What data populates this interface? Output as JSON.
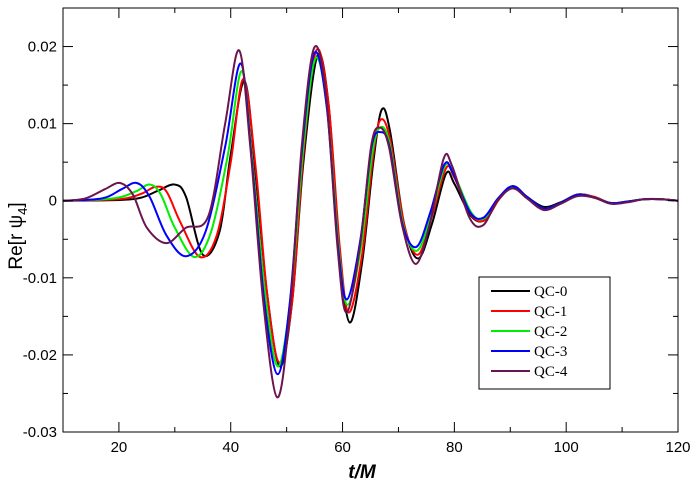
{
  "chart_data": {
    "type": "line",
    "title": "",
    "xlabel": "t/M",
    "ylabel_main": "Re[r ψ",
    "ylabel_sub": "4",
    "ylabel_end": "]",
    "xlim": [
      10,
      120
    ],
    "ylim": [
      -0.03,
      0.025
    ],
    "xticks": [
      20,
      40,
      60,
      80,
      100,
      120
    ],
    "xtick_labels": [
      "20",
      "40",
      "60",
      "80",
      "100",
      "120"
    ],
    "yticks": [
      -0.03,
      -0.02,
      -0.01,
      0,
      0.01,
      0.02
    ],
    "ytick_labels": [
      "-0.03",
      "-0.02",
      "-0.01",
      "0",
      "0.01",
      "0.02"
    ],
    "grid": false,
    "legend_position": "bottom-right",
    "series": [
      {
        "name": "QC-0",
        "color": "#000000",
        "points": [
          [
            10,
            0
          ],
          [
            20,
            0.0001
          ],
          [
            24,
            0.0004
          ],
          [
            27,
            0.0013
          ],
          [
            30,
            0.0021
          ],
          [
            32,
            0.0005
          ],
          [
            35,
            -0.007
          ],
          [
            38,
            -0.004
          ],
          [
            40,
            0.006
          ],
          [
            42.5,
            0.0155
          ],
          [
            44.5,
            0.003
          ],
          [
            46.5,
            -0.012
          ],
          [
            48.8,
            -0.0215
          ],
          [
            51,
            -0.013
          ],
          [
            53,
            0.005
          ],
          [
            55.5,
            0.0188
          ],
          [
            57.5,
            0.0125
          ],
          [
            59.5,
            -0.007
          ],
          [
            61.3,
            -0.0158
          ],
          [
            63.5,
            -0.008
          ],
          [
            65.5,
            0.005
          ],
          [
            67,
            0.0118
          ],
          [
            68.5,
            0.009
          ],
          [
            71,
            -0.003
          ],
          [
            73.5,
            -0.0075
          ],
          [
            76,
            -0.003
          ],
          [
            78.5,
            0.0035
          ],
          [
            80,
            0.0022
          ],
          [
            83,
            -0.002
          ],
          [
            85.5,
            -0.0025
          ],
          [
            88,
            0.0002
          ],
          [
            90.5,
            0.0018
          ],
          [
            93,
            0.0005
          ],
          [
            96,
            -0.0008
          ],
          [
            99,
            -0.0002
          ],
          [
            102,
            0.0008
          ],
          [
            105,
            0.0005
          ],
          [
            108,
            -0.0003
          ],
          [
            111,
            -0.0001
          ],
          [
            114,
            0.0002
          ],
          [
            117,
            0.0002
          ],
          [
            120,
            0
          ]
        ]
      },
      {
        "name": "QC-1",
        "color": "#ff0000",
        "points": [
          [
            10,
            0
          ],
          [
            20,
            0.0002
          ],
          [
            24,
            0.0009
          ],
          [
            26.5,
            0.0018
          ],
          [
            28.5,
            0.0012
          ],
          [
            31,
            -0.0028
          ],
          [
            34.5,
            -0.0073
          ],
          [
            37.5,
            -0.0045
          ],
          [
            40,
            0.005
          ],
          [
            42.3,
            0.0158
          ],
          [
            44.5,
            0.004
          ],
          [
            46.5,
            -0.012
          ],
          [
            48.7,
            -0.021
          ],
          [
            51,
            -0.013
          ],
          [
            53,
            0.006
          ],
          [
            55.3,
            0.0195
          ],
          [
            57.5,
            0.0125
          ],
          [
            59.5,
            -0.006
          ],
          [
            61.1,
            -0.0145
          ],
          [
            63.5,
            -0.007
          ],
          [
            65.5,
            0.006
          ],
          [
            66.8,
            0.0105
          ],
          [
            68.5,
            0.008
          ],
          [
            71,
            -0.003
          ],
          [
            73.5,
            -0.007
          ],
          [
            76,
            -0.002
          ],
          [
            78.5,
            0.0042
          ],
          [
            80,
            0.003
          ],
          [
            83,
            -0.0018
          ],
          [
            85.5,
            -0.0025
          ],
          [
            88,
            0.0002
          ],
          [
            90.5,
            0.0019
          ],
          [
            93,
            0.0005
          ],
          [
            96,
            -0.001
          ],
          [
            99,
            -0.0003
          ],
          [
            102,
            0.0008
          ],
          [
            105,
            0.0005
          ],
          [
            108,
            -0.0003
          ],
          [
            111,
            -0.0001
          ],
          [
            114,
            0.0002
          ],
          [
            117,
            0.0002
          ],
          [
            120,
            0
          ]
        ]
      },
      {
        "name": "QC-2",
        "color": "#00ee00",
        "points": [
          [
            10,
            0
          ],
          [
            19,
            0.0003
          ],
          [
            23,
            0.0012
          ],
          [
            25.5,
            0.0021
          ],
          [
            27.5,
            0.0008
          ],
          [
            30,
            -0.0035
          ],
          [
            33.5,
            -0.0073
          ],
          [
            36.5,
            -0.004
          ],
          [
            39.5,
            0.006
          ],
          [
            42,
            0.0168
          ],
          [
            44,
            0.004
          ],
          [
            46.3,
            -0.013
          ],
          [
            48.5,
            -0.0215
          ],
          [
            50.8,
            -0.012
          ],
          [
            53,
            0.007
          ],
          [
            55.2,
            0.0185
          ],
          [
            57.3,
            0.0115
          ],
          [
            59.3,
            -0.006
          ],
          [
            60.9,
            -0.0135
          ],
          [
            63.3,
            -0.006
          ],
          [
            65.3,
            0.006
          ],
          [
            66.7,
            0.0095
          ],
          [
            68.4,
            0.0075
          ],
          [
            70.8,
            -0.003
          ],
          [
            73.3,
            -0.0065
          ],
          [
            75.8,
            -0.002
          ],
          [
            78.3,
            0.0045
          ],
          [
            80,
            0.0033
          ],
          [
            83,
            -0.0015
          ],
          [
            85.3,
            -0.0023
          ],
          [
            88,
            0.0003
          ],
          [
            90.5,
            0.0019
          ],
          [
            93,
            0.0005
          ],
          [
            96,
            -0.001
          ],
          [
            99,
            -0.0003
          ],
          [
            102,
            0.0008
          ],
          [
            105,
            0.0004
          ],
          [
            108,
            -0.0003
          ],
          [
            111,
            -0.0001
          ],
          [
            114,
            0.0002
          ],
          [
            117,
            0.0002
          ],
          [
            120,
            0
          ]
        ]
      },
      {
        "name": "QC-3",
        "color": "#0000ff",
        "points": [
          [
            10,
            0
          ],
          [
            17,
            0.0003
          ],
          [
            20.5,
            0.0015
          ],
          [
            23.2,
            0.0023
          ],
          [
            25.5,
            0.0005
          ],
          [
            28.5,
            -0.0045
          ],
          [
            32,
            -0.0072
          ],
          [
            35.5,
            -0.004
          ],
          [
            39,
            0.007
          ],
          [
            41.8,
            0.0178
          ],
          [
            43.8,
            0.005
          ],
          [
            46,
            -0.013
          ],
          [
            48.4,
            -0.0225
          ],
          [
            50.6,
            -0.013
          ],
          [
            52.8,
            0.007
          ],
          [
            55,
            0.0192
          ],
          [
            57.2,
            0.012
          ],
          [
            59.2,
            -0.006
          ],
          [
            60.8,
            -0.0128
          ],
          [
            63.2,
            -0.005
          ],
          [
            65.2,
            0.007
          ],
          [
            66.8,
            0.0089
          ],
          [
            68.4,
            0.007
          ],
          [
            70.7,
            -0.003
          ],
          [
            73.2,
            -0.006
          ],
          [
            75.7,
            -0.0015
          ],
          [
            78.2,
            0.0047
          ],
          [
            79.8,
            0.0035
          ],
          [
            82.8,
            -0.0015
          ],
          [
            85.2,
            -0.0022
          ],
          [
            87.8,
            0.0003
          ],
          [
            90.4,
            0.0019
          ],
          [
            93,
            0.0005
          ],
          [
            96,
            -0.001
          ],
          [
            99,
            -0.0003
          ],
          [
            102,
            0.0008
          ],
          [
            105,
            0.0004
          ],
          [
            108,
            -0.0003
          ],
          [
            111,
            -0.0001
          ],
          [
            114,
            0.0002
          ],
          [
            117,
            0.0002
          ],
          [
            120,
            0
          ]
        ]
      },
      {
        "name": "QC-4",
        "color": "#6b1550",
        "points": [
          [
            10,
            0
          ],
          [
            14,
            0.0003
          ],
          [
            17.5,
            0.0015
          ],
          [
            20.2,
            0.0023
          ],
          [
            22.5,
            0.0008
          ],
          [
            25,
            -0.0035
          ],
          [
            28.5,
            -0.0055
          ],
          [
            32,
            -0.0035
          ],
          [
            36,
            -0.002
          ],
          [
            39,
            0.01
          ],
          [
            41.5,
            0.0195
          ],
          [
            43.5,
            0.007
          ],
          [
            45.8,
            -0.013
          ],
          [
            48.3,
            -0.0255
          ],
          [
            50.5,
            -0.015
          ],
          [
            52.7,
            0.007
          ],
          [
            54.9,
            0.0198
          ],
          [
            57,
            0.014
          ],
          [
            59.1,
            -0.006
          ],
          [
            60.7,
            -0.0145
          ],
          [
            63.1,
            -0.006
          ],
          [
            65.1,
            0.007
          ],
          [
            66.6,
            0.0095
          ],
          [
            68.3,
            0.007
          ],
          [
            70.6,
            -0.003
          ],
          [
            73.1,
            -0.0082
          ],
          [
            75.6,
            -0.003
          ],
          [
            78.1,
            0.0055
          ],
          [
            79.6,
            0.0045
          ],
          [
            82.7,
            -0.0022
          ],
          [
            85.1,
            -0.0032
          ],
          [
            87.7,
            0
          ],
          [
            90.4,
            0.0016
          ],
          [
            93,
            0.0003
          ],
          [
            96,
            -0.0012
          ],
          [
            99,
            -0.0004
          ],
          [
            102,
            0.0006
          ],
          [
            105,
            0.0004
          ],
          [
            108,
            -0.0004
          ],
          [
            111,
            -0.0002
          ],
          [
            114,
            0.0002
          ],
          [
            117,
            0.0002
          ],
          [
            120,
            0
          ]
        ]
      }
    ]
  }
}
